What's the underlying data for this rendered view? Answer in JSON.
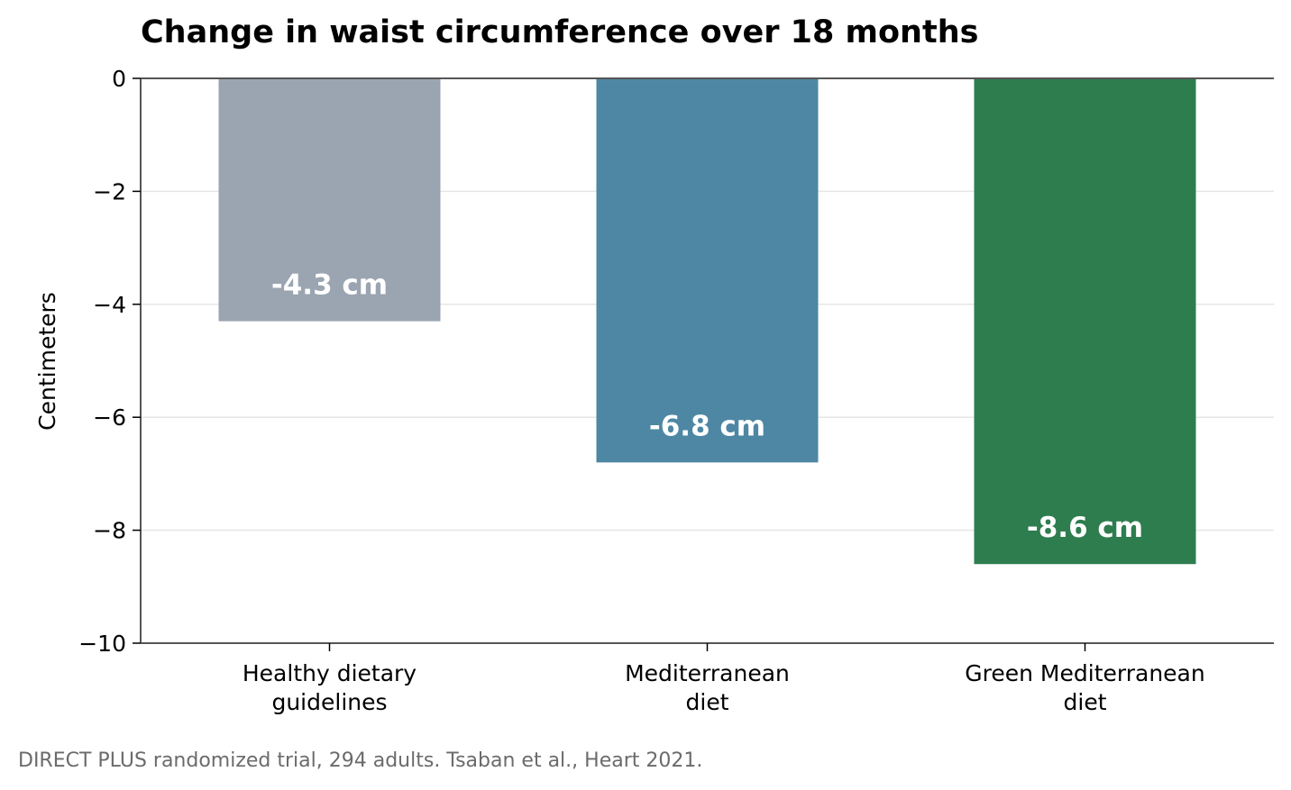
{
  "chart_data": {
    "type": "bar",
    "title": "Change in waist circumference over 18 months",
    "xlabel": "",
    "ylabel": "Centimeters",
    "ylim": [
      -10,
      0
    ],
    "yticks": [
      0,
      -2,
      -4,
      -6,
      -8,
      -10
    ],
    "ytick_labels": [
      "0",
      "−2",
      "−4",
      "−6",
      "−8",
      "−10"
    ],
    "categories": [
      [
        "Healthy dietary",
        "guidelines"
      ],
      [
        "Mediterranean",
        "diet"
      ],
      [
        "Green Mediterranean",
        "diet"
      ]
    ],
    "values": [
      -4.3,
      -6.8,
      -8.6
    ],
    "data_labels": [
      "-4.3 cm",
      "-6.8 cm",
      "-8.6 cm"
    ],
    "colors": [
      "#9aa5b1",
      "#4e87a3",
      "#2e7d4f"
    ],
    "grid": "horizontal",
    "gridline_color": "#e6e6e6",
    "axis_color": "#555555"
  },
  "source_note": "DIRECT PLUS randomized trial, 294 adults. Tsaban et al., Heart 2021."
}
